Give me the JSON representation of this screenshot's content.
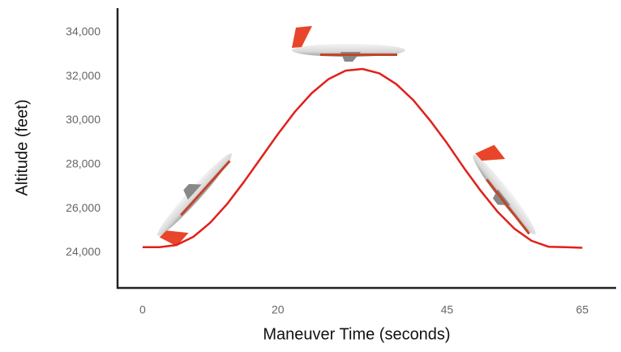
{
  "chart_data": {
    "type": "line",
    "x_label": "Maneuver Time (seconds)",
    "y_label": "Altitude (feet)",
    "x": [
      0,
      2.5,
      5,
      7.5,
      10,
      12.5,
      15,
      17.5,
      20,
      22.5,
      25,
      27.5,
      30,
      32.5,
      35,
      37.5,
      40,
      42.5,
      45,
      47.5,
      50,
      52.5,
      55,
      57.5,
      60,
      62.5,
      65
    ],
    "series": [
      {
        "color": "#e0201b",
        "values": [
          24250,
          24250,
          24345,
          24720,
          25360,
          26210,
          27220,
          28300,
          29380,
          30390,
          31240,
          31880,
          32260,
          32340,
          32140,
          31650,
          30930,
          30000,
          28970,
          27850,
          26800,
          25850,
          25080,
          24540,
          24270,
          24250,
          24220
        ]
      }
    ],
    "xlim": [
      -3.7,
      70
    ],
    "xticks": [
      0,
      20,
      45,
      65
    ],
    "ylim": [
      22400,
      35100
    ],
    "yticks": [
      {
        "value": 24000,
        "label": "24,000"
      },
      {
        "value": 26000,
        "label": "26,000"
      },
      {
        "value": 28000,
        "label": "28,000"
      },
      {
        "value": 30000,
        "label": "30,000"
      },
      {
        "value": 32000,
        "label": "32,000"
      },
      {
        "value": 34000,
        "label": "34,000"
      }
    ],
    "grid": false
  }
}
